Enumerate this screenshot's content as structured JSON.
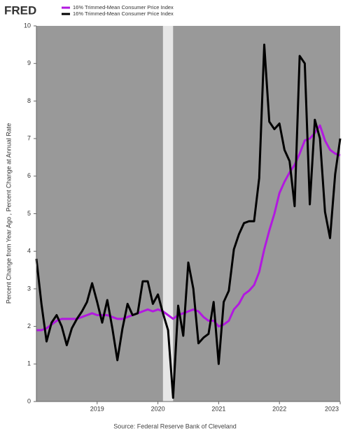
{
  "chart_data": {
    "type": "line",
    "logo": "FRED",
    "ylabel": "Percent Change from Year Ago , Percent Change at Annual Rate",
    "source": "Source: Federal Reserve Bank of Cleveland",
    "x": [
      2018,
      2018.083,
      2018.167,
      2018.25,
      2018.333,
      2018.417,
      2018.5,
      2018.583,
      2018.667,
      2018.75,
      2018.833,
      2018.917,
      2019,
      2019.083,
      2019.167,
      2019.25,
      2019.333,
      2019.417,
      2019.5,
      2019.583,
      2019.667,
      2019.75,
      2019.833,
      2019.917,
      2020,
      2020.083,
      2020.167,
      2020.25,
      2020.333,
      2020.417,
      2020.5,
      2020.583,
      2020.667,
      2020.75,
      2020.833,
      2020.917,
      2021,
      2021.083,
      2021.167,
      2021.25,
      2021.333,
      2021.417,
      2021.5,
      2021.583,
      2021.667,
      2021.75,
      2021.833,
      2021.917,
      2022,
      2022.083,
      2022.167,
      2022.25,
      2022.333,
      2022.417,
      2022.5,
      2022.583,
      2022.667,
      2022.75,
      2022.833,
      2022.917,
      2023
    ],
    "series": [
      {
        "name": "16% Trimmed-Mean Consumer Price Index",
        "color": "#b218e0",
        "values": [
          1.9,
          1.9,
          1.95,
          2.05,
          2.15,
          2.2,
          2.2,
          2.2,
          2.2,
          2.25,
          2.3,
          2.35,
          2.3,
          2.3,
          2.3,
          2.25,
          2.2,
          2.2,
          2.25,
          2.3,
          2.35,
          2.4,
          2.45,
          2.4,
          2.45,
          2.4,
          2.3,
          2.2,
          2.3,
          2.35,
          2.4,
          2.45,
          2.4,
          2.25,
          2.15,
          2.15,
          2.0,
          2.05,
          2.15,
          2.45,
          2.6,
          2.85,
          2.95,
          3.1,
          3.45,
          4.05,
          4.55,
          5.0,
          5.55,
          5.85,
          6.1,
          6.3,
          6.6,
          6.95,
          7.0,
          7.15,
          7.35,
          6.95,
          6.7,
          6.6,
          6.55
        ]
      },
      {
        "name": "16% Trimmed-Mean Consumer Price Index",
        "color": "#000000",
        "values": [
          3.8,
          2.6,
          1.6,
          2.1,
          2.3,
          2.0,
          1.5,
          1.95,
          2.2,
          2.4,
          2.65,
          3.15,
          2.65,
          2.1,
          2.7,
          1.95,
          1.1,
          1.95,
          2.6,
          2.3,
          2.35,
          3.2,
          3.2,
          2.6,
          2.85,
          2.35,
          1.9,
          0.1,
          2.55,
          1.75,
          3.7,
          3.0,
          1.55,
          1.7,
          1.8,
          2.65,
          1.0,
          2.65,
          2.95,
          4.05,
          4.45,
          4.75,
          4.8,
          4.8,
          5.95,
          9.5,
          7.45,
          7.25,
          7.4,
          6.7,
          6.4,
          5.2,
          9.2,
          9.0,
          5.25,
          7.5,
          7.0,
          5.05,
          4.35,
          6.05,
          7.0
        ]
      }
    ],
    "shaded": [
      [
        2020.083,
        2020.25
      ]
    ],
    "xlim": [
      2018,
      2023
    ],
    "xticks": [
      2019,
      2020,
      2021,
      2022,
      2023
    ],
    "ylim": [
      0,
      10
    ],
    "yticks": [
      0,
      1,
      2,
      3,
      4,
      5,
      6,
      7,
      8,
      9,
      10
    ],
    "grid": false
  }
}
